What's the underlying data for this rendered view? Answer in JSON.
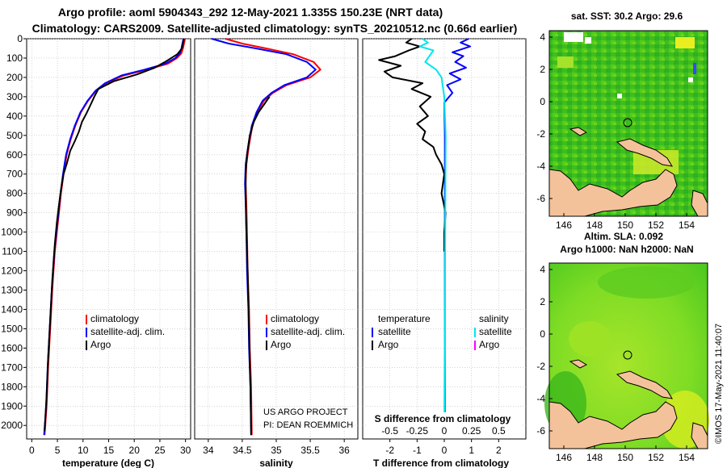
{
  "header": {
    "line1": "Argo profile: aoml 5904343_292 12-May-2021 1.335S 150.23E (NRT data)",
    "line2": "Climatology: CARS2009. Satellite-adjusted climatology: synTS_20210512.nc (0.66d earlier)"
  },
  "colors": {
    "climatology": "#ff0000",
    "satellite": "#0000ff",
    "argo": "#000000",
    "sal_satellite": "#00e5ee",
    "sal_argo": "#ff00ff",
    "land": "#f4c29a"
  },
  "chart_data": [
    {
      "type": "line",
      "name": "temperature",
      "xlabel": "temperature (deg C)",
      "ylabel": "depth",
      "xlim": [
        -1,
        31
      ],
      "ylim": [
        2070,
        0
      ],
      "xticks": [
        0,
        5,
        10,
        15,
        20,
        25,
        30
      ],
      "yticks": [
        0,
        100,
        200,
        300,
        400,
        500,
        600,
        700,
        800,
        900,
        1000,
        1100,
        1200,
        1300,
        1400,
        1500,
        1600,
        1700,
        1800,
        1900,
        2000
      ],
      "legend": [
        "climatology",
        "satellite-adj. clim.",
        "Argo"
      ],
      "series": [
        {
          "name": "climatology",
          "x": [
            29.9,
            29.7,
            29.5,
            29.2,
            28.3,
            26.5,
            22.5,
            18.0,
            14.5,
            12.5,
            11.0,
            9.6,
            8.5,
            7.6,
            6.8,
            6.2,
            5.7,
            5.3,
            4.9,
            4.5,
            4.0,
            3.6,
            3.2,
            2.9,
            2.5
          ],
          "depth": [
            0,
            25,
            50,
            75,
            100,
            130,
            160,
            190,
            230,
            270,
            320,
            380,
            450,
            520,
            600,
            700,
            800,
            900,
            1000,
            1100,
            1300,
            1500,
            1700,
            1900,
            2050
          ]
        },
        {
          "name": "satellite-adj. clim.",
          "x": [
            29.6,
            29.4,
            29.2,
            28.9,
            28.0,
            26.0,
            22.0,
            17.5,
            14.3,
            12.4,
            10.9,
            9.5,
            8.4,
            7.5,
            6.7,
            6.1,
            5.6,
            5.2,
            4.8,
            4.4,
            3.9,
            3.5,
            3.1,
            2.8,
            2.4
          ],
          "depth": [
            0,
            25,
            50,
            75,
            100,
            130,
            160,
            190,
            230,
            270,
            320,
            380,
            450,
            520,
            600,
            700,
            800,
            900,
            1000,
            1100,
            1300,
            1500,
            1700,
            1900,
            2050
          ]
        },
        {
          "name": "Argo",
          "x": [
            29.7,
            29.5,
            29.3,
            28.4,
            26.0,
            24.0,
            20.5,
            16.0,
            13.0,
            12.2,
            11.5,
            10.6,
            9.8,
            9.2,
            8.4,
            7.5,
            6.9,
            6.2,
            5.7,
            5.3,
            4.9,
            4.5,
            4.0,
            3.6,
            3.2,
            2.9,
            2.5
          ],
          "depth": [
            0,
            25,
            50,
            80,
            120,
            150,
            185,
            220,
            260,
            300,
            340,
            390,
            430,
            480,
            530,
            580,
            640,
            700,
            780,
            860,
            950,
            1060,
            1250,
            1450,
            1650,
            1850,
            2030
          ]
        }
      ]
    },
    {
      "type": "line",
      "name": "salinity",
      "xlabel": "salinity",
      "xlim": [
        33.8,
        36.2
      ],
      "ylim": [
        2070,
        0
      ],
      "xticks": [
        34,
        34.5,
        35,
        35.5,
        36
      ],
      "legend": [
        "climatology",
        "satellite-adj. clim.",
        "Argo"
      ],
      "annotation": [
        "US ARGO PROJECT",
        "PI: DEAN ROEMMICH"
      ],
      "series": [
        {
          "name": "climatology",
          "x": [
            34.25,
            34.5,
            34.85,
            35.25,
            35.55,
            35.65,
            35.5,
            35.15,
            34.95,
            34.82,
            34.72,
            34.65,
            34.6,
            34.56,
            34.55,
            34.56,
            34.57,
            34.58,
            34.6,
            34.61,
            34.63,
            34.64
          ],
          "depth": [
            0,
            25,
            50,
            80,
            120,
            160,
            200,
            240,
            280,
            320,
            380,
            450,
            550,
            650,
            750,
            850,
            1000,
            1200,
            1400,
            1600,
            1800,
            2050
          ]
        },
        {
          "name": "satellite-adj. clim.",
          "x": [
            34.05,
            34.3,
            34.7,
            35.15,
            35.45,
            35.58,
            35.45,
            35.12,
            34.93,
            34.8,
            34.71,
            34.64,
            34.59,
            34.55,
            34.54,
            34.55,
            34.56,
            34.57,
            34.59,
            34.6,
            34.62,
            34.63
          ],
          "depth": [
            0,
            25,
            50,
            80,
            120,
            160,
            200,
            240,
            280,
            320,
            380,
            450,
            550,
            650,
            750,
            850,
            1000,
            1200,
            1400,
            1600,
            1800,
            2050
          ]
        },
        {
          "name": "Argo",
          "x": [
            34.9,
            34.82,
            34.74,
            34.67,
            34.61,
            34.57,
            34.55,
            34.55,
            34.56,
            34.58,
            34.6,
            34.62,
            34.63
          ],
          "depth": [
            300,
            340,
            380,
            430,
            500,
            600,
            700,
            800,
            1000,
            1200,
            1500,
            1800,
            2050
          ]
        }
      ]
    },
    {
      "type": "line",
      "name": "difference from climatology",
      "xlabel": "T difference from climatology",
      "xlabel_top": "S difference from climatology",
      "xlim": [
        -3,
        3
      ],
      "ylim": [
        2070,
        0
      ],
      "xticks": [
        -2,
        -1,
        0,
        1,
        2
      ],
      "top_ticks": [
        {
          "v": -2,
          "t": "-0.5"
        },
        {
          "v": -1,
          "t": "-0.25"
        },
        {
          "v": 0,
          "t": "0"
        },
        {
          "v": 1,
          "t": "0.25"
        },
        {
          "v": 2,
          "t": "0.5"
        }
      ],
      "legend_left": {
        "title": "temperature",
        "items": [
          "satellite",
          "Argo"
        ]
      },
      "legend_right": {
        "title": "salinity",
        "items": [
          "satellite",
          "Argo"
        ]
      },
      "series": [
        {
          "name": "T satellite",
          "x": [
            0.9,
            0.6,
            0.95,
            0.3,
            0.7,
            0.4,
            0.8,
            0.2,
            0.6,
            0.1,
            0.3,
            0.0,
            0.02,
            0.02
          ],
          "depth": [
            0,
            20,
            40,
            70,
            90,
            120,
            150,
            180,
            210,
            240,
            280,
            330,
            500,
            2050
          ]
        },
        {
          "name": "T Argo",
          "x": [
            -1.2,
            -1.4,
            -0.9,
            -1.3,
            -1.8,
            -2.4,
            -1.6,
            -2.2,
            -1.9,
            -0.8,
            -1.2,
            -0.5,
            -0.9,
            -0.6,
            -1.0,
            -0.7,
            -0.8,
            -0.4,
            -0.3,
            -0.1,
            0.0,
            -0.1,
            0.05,
            0.0,
            0.0
          ],
          "depth": [
            0,
            20,
            40,
            60,
            90,
            110,
            140,
            170,
            200,
            230,
            260,
            300,
            350,
            400,
            440,
            480,
            520,
            560,
            600,
            650,
            700,
            800,
            900,
            1000,
            1100
          ]
        },
        {
          "name": "S satellite",
          "x": [
            -0.8,
            -0.6,
            -0.9,
            -0.4,
            -0.5,
            -0.7,
            -0.3,
            -0.1,
            0.0,
            0.05,
            0.0
          ],
          "depth": [
            0,
            20,
            40,
            60,
            80,
            120,
            160,
            200,
            300,
            500,
            2050
          ]
        }
      ]
    }
  ],
  "sst_map": {
    "title": "sat. SST: 30.2 Argo: 29.6",
    "xticks": [
      "146",
      "148",
      "150",
      "152",
      "154"
    ],
    "yticks": [
      "4",
      "2",
      "0",
      "-2",
      "-4",
      "-6"
    ]
  },
  "sla_map": {
    "title_line1": "Altim. SLA: 0.092",
    "title_line2": "Argo h1000: NaN h2000: NaN",
    "xticks": [
      "146",
      "148",
      "150",
      "152",
      "154"
    ],
    "yticks": [
      "4",
      "2",
      "0",
      "-2",
      "-4",
      "-6"
    ]
  },
  "copyright": "©IMOS 17-May-2021 11:40:07"
}
